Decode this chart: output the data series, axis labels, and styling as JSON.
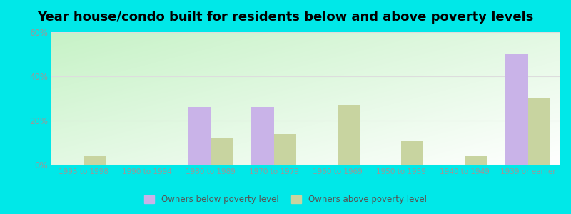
{
  "title": "Year house/condo built for residents below and above poverty levels",
  "categories": [
    "1995 to 1998",
    "1990 to 1994",
    "1980 to 1989",
    "1970 to 1979",
    "1960 to 1969",
    "1950 to 1959",
    "1940 to 1949",
    "1939 or earlier"
  ],
  "below_poverty": [
    0,
    0,
    26,
    26,
    0,
    0,
    0,
    50
  ],
  "above_poverty": [
    4,
    0,
    12,
    14,
    27,
    11,
    4,
    30
  ],
  "below_color": "#c9b3e8",
  "above_color": "#c8d4a0",
  "ylim": [
    0,
    60
  ],
  "yticks": [
    0,
    20,
    40,
    60
  ],
  "ytick_labels": [
    "0%",
    "20%",
    "40%",
    "60%"
  ],
  "legend_below": "Owners below poverty level",
  "legend_above": "Owners above poverty level",
  "outer_background": "#00e8e8",
  "title_fontsize": 13,
  "bar_width": 0.35,
  "tick_color": "#999999",
  "grid_color": "#dddddd"
}
